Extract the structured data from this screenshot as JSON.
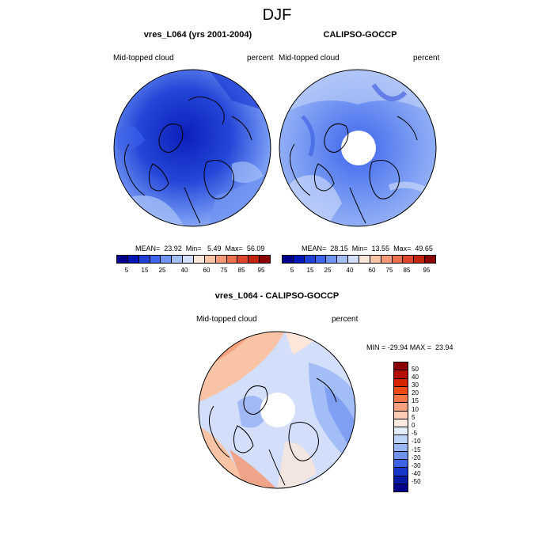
{
  "season": "DJF",
  "panels": [
    {
      "title": "vres_L064 (yrs 2001-2004)",
      "variable": "Mid-topped cloud",
      "units": "percent",
      "stats": "MEAN=  23.92  Min=   5.49  Max=  56.09"
    },
    {
      "title": "CALIPSO-GOCCP",
      "variable": "Mid-topped cloud",
      "units": "percent",
      "stats": "MEAN=  28.15  Min=  13.55  Max=  49.65"
    }
  ],
  "diff_panel": {
    "title": "vres_L064 - CALIPSO-GOCCP",
    "variable": "Mid-topped cloud",
    "units": "percent",
    "stats": "MIN = -29.94 MAX =  23.94"
  },
  "colorbar_abs": {
    "labels": [
      "5",
      "15",
      "25",
      "40",
      "60",
      "75",
      "85",
      "95"
    ],
    "colors": [
      "#00008b",
      "#0015b5",
      "#1f3fd6",
      "#3f64ec",
      "#6f93f2",
      "#a3bdf6",
      "#d2defa",
      "#fbe6d9",
      "#f9c3a6",
      "#f49a76",
      "#ec6f4e",
      "#dd462d",
      "#c2240f",
      "#8b0000"
    ]
  },
  "colorbar_diff": {
    "labels": [
      "50",
      "40",
      "30",
      "20",
      "15",
      "10",
      "5",
      "0",
      "-5",
      "-10",
      "-15",
      "-20",
      "-30",
      "-40",
      "-50"
    ],
    "colors": [
      "#8b0000",
      "#b50d00",
      "#d72400",
      "#ec4b16",
      "#f47545",
      "#f7a07f",
      "#fbcbb4",
      "#fdebe2",
      "#e3eefc",
      "#bed3f8",
      "#9ab7f5",
      "#6f92ef",
      "#3c63e4",
      "#1737c9",
      "#0318a3",
      "#00008b"
    ]
  }
}
